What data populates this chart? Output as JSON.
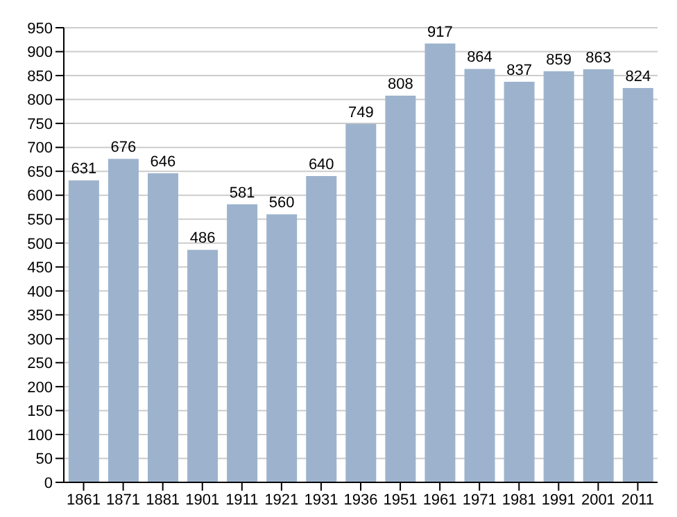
{
  "chart_data": {
    "type": "bar",
    "categories": [
      "1861",
      "1871",
      "1881",
      "1901",
      "1911",
      "1921",
      "1931",
      "1936",
      "1951",
      "1961",
      "1971",
      "1981",
      "1991",
      "2001",
      "2011"
    ],
    "values": [
      631,
      676,
      646,
      486,
      581,
      560,
      640,
      749,
      808,
      917,
      864,
      837,
      859,
      863,
      824
    ],
    "color": "#9db3cd",
    "ylim": [
      0,
      950
    ],
    "yticks": [
      0,
      50,
      100,
      150,
      200,
      250,
      300,
      350,
      400,
      450,
      500,
      550,
      600,
      650,
      700,
      750,
      800,
      850,
      900,
      950
    ],
    "grid": "y",
    "data_labels": true
  }
}
